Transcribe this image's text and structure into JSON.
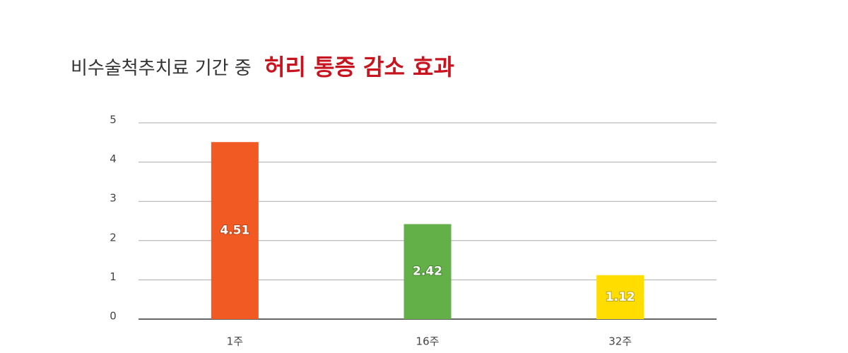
{
  "chart_data": {
    "type": "bar",
    "title_parts": [
      "비수술척추치료 기간 중",
      "허리 통증 감소 효과"
    ],
    "categories": [
      "1주",
      "16주",
      "32주"
    ],
    "values": [
      4.51,
      2.42,
      1.12
    ],
    "colors": [
      "#f15a22",
      "#62b047",
      "#ffdd00"
    ],
    "ylim": [
      0,
      5
    ],
    "yticks": [
      0,
      1,
      2,
      3,
      4,
      5
    ],
    "grid": true
  }
}
